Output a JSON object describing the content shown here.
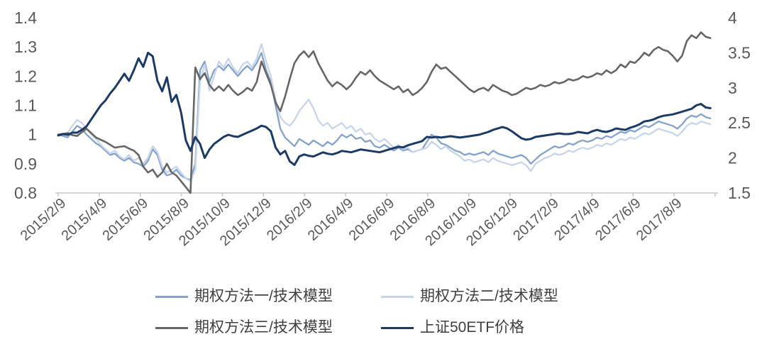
{
  "chart_data": {
    "type": "line",
    "title": "",
    "background": "#ffffff",
    "axis_line_color": "#c6c6c6",
    "tick_label_color": "#595959",
    "x_axis": {
      "tick_labels": [
        "2015/2/9",
        "2015/4/9",
        "2015/6/9",
        "2015/8/9",
        "2015/10/9",
        "2015/12/9",
        "2016/2/9",
        "2016/4/9",
        "2016/6/9",
        "2016/8/9",
        "2016/10/9",
        "2016/12/9",
        "2017/2/9",
        "2017/4/9",
        "2017/6/9",
        "2017/8/9"
      ],
      "tick_interval": "2 months",
      "label_rotation_deg": -42,
      "points_per_series": 139,
      "point_interval": "weekly"
    },
    "y_axis_left": {
      "min": 0.8,
      "max": 1.4,
      "tick_labels": [
        "1.4",
        "1.3",
        "1.2",
        "1.1",
        "1",
        "0.9",
        "0.8"
      ]
    },
    "y_axis_right": {
      "min": 1.5,
      "max": 4,
      "tick_labels": [
        "4",
        "3.5",
        "3",
        "2.5",
        "2",
        "1.5"
      ]
    },
    "legend_position": "bottom",
    "series": [
      {
        "name": "期权方法一/技术模型",
        "axis": "left",
        "color": "#84a2cb",
        "line_width": 2.3,
        "values": [
          1.0,
          0.995,
          0.99,
          1.01,
          1.03,
          1.02,
          1.0,
          0.985,
          0.97,
          0.96,
          0.945,
          0.93,
          0.935,
          0.92,
          0.91,
          0.92,
          0.905,
          0.9,
          0.89,
          0.91,
          0.95,
          0.93,
          0.88,
          0.86,
          0.865,
          0.88,
          0.86,
          0.85,
          0.845,
          0.9,
          1.22,
          1.25,
          1.18,
          1.22,
          1.235,
          1.22,
          1.24,
          1.22,
          1.2,
          1.22,
          1.235,
          1.22,
          1.245,
          1.28,
          1.22,
          1.18,
          1.1,
          1.02,
          0.99,
          0.975,
          0.96,
          0.985,
          0.975,
          0.965,
          0.98,
          0.97,
          0.96,
          0.975,
          0.965,
          0.98,
          1.0,
          0.99,
          1.0,
          0.985,
          0.99,
          0.975,
          0.98,
          0.96,
          0.955,
          0.965,
          0.955,
          0.945,
          0.955,
          0.945,
          0.95,
          0.94,
          0.945,
          0.95,
          0.975,
          1.0,
          0.99,
          0.97,
          0.965,
          0.955,
          0.945,
          0.94,
          0.93,
          0.935,
          0.93,
          0.935,
          0.94,
          0.93,
          0.945,
          0.935,
          0.93,
          0.925,
          0.92,
          0.925,
          0.93,
          0.92,
          0.9,
          0.915,
          0.93,
          0.94,
          0.95,
          0.96,
          0.955,
          0.96,
          0.97,
          0.965,
          0.975,
          0.98,
          0.975,
          0.98,
          0.99,
          0.985,
          0.995,
          0.99,
          1.0,
          1.01,
          1.005,
          1.015,
          1.01,
          1.02,
          1.03,
          1.025,
          1.035,
          1.045,
          1.04,
          1.035,
          1.03,
          1.02,
          1.035,
          1.055,
          1.065,
          1.06,
          1.07,
          1.06,
          1.055
        ]
      },
      {
        "name": "期权方法二/技术模型",
        "axis": "left",
        "color": "#c6d5eb",
        "line_width": 2.3,
        "values": [
          1.0,
          1.003,
          1.005,
          1.03,
          1.05,
          1.04,
          1.02,
          1.0,
          0.985,
          0.965,
          0.95,
          0.935,
          0.945,
          0.925,
          0.915,
          0.93,
          0.91,
          0.92,
          0.9,
          0.92,
          0.96,
          0.94,
          0.89,
          0.87,
          0.88,
          0.89,
          0.87,
          0.85,
          0.84,
          0.88,
          1.18,
          1.24,
          1.15,
          1.2,
          1.25,
          1.23,
          1.26,
          1.23,
          1.21,
          1.24,
          1.25,
          1.23,
          1.26,
          1.31,
          1.25,
          1.2,
          1.12,
          1.06,
          1.04,
          1.03,
          1.05,
          1.08,
          1.1,
          1.12,
          1.09,
          1.05,
          1.03,
          1.04,
          1.02,
          1.03,
          1.04,
          1.02,
          1.03,
          1.01,
          1.02,
          1.0,
          1.005,
          0.985,
          0.975,
          0.985,
          0.97,
          0.955,
          0.965,
          0.95,
          0.955,
          0.94,
          0.945,
          0.95,
          0.955,
          0.975,
          0.965,
          0.95,
          0.96,
          0.945,
          0.935,
          0.925,
          0.91,
          0.915,
          0.905,
          0.91,
          0.915,
          0.905,
          0.92,
          0.91,
          0.905,
          0.9,
          0.895,
          0.9,
          0.905,
          0.895,
          0.875,
          0.9,
          0.91,
          0.92,
          0.925,
          0.935,
          0.93,
          0.935,
          0.945,
          0.94,
          0.95,
          0.955,
          0.95,
          0.955,
          0.965,
          0.96,
          0.97,
          0.965,
          0.975,
          0.985,
          0.98,
          0.99,
          0.985,
          0.995,
          1.005,
          1.0,
          1.01,
          1.02,
          1.015,
          1.01,
          1.005,
          0.995,
          1.01,
          1.03,
          1.04,
          1.035,
          1.045,
          1.04,
          1.035
        ]
      },
      {
        "name": "期权方法三/技术模型",
        "axis": "left",
        "color": "#666666",
        "line_width": 2.6,
        "values": [
          1.0,
          1.002,
          1.005,
          0.998,
          0.995,
          1.008,
          1.02,
          1.005,
          0.99,
          0.982,
          0.975,
          0.965,
          0.955,
          0.958,
          0.96,
          0.952,
          0.945,
          0.93,
          0.89,
          0.87,
          0.88,
          0.855,
          0.87,
          0.9,
          0.87,
          0.86,
          0.84,
          0.82,
          0.8,
          1.23,
          1.19,
          1.21,
          1.17,
          1.15,
          1.165,
          1.15,
          1.17,
          1.15,
          1.135,
          1.145,
          1.16,
          1.15,
          1.18,
          1.25,
          1.21,
          1.17,
          1.11,
          1.08,
          1.13,
          1.19,
          1.245,
          1.27,
          1.285,
          1.265,
          1.285,
          1.245,
          1.215,
          1.185,
          1.165,
          1.18,
          1.17,
          1.155,
          1.17,
          1.195,
          1.215,
          1.205,
          1.22,
          1.2,
          1.185,
          1.175,
          1.165,
          1.155,
          1.165,
          1.145,
          1.155,
          1.135,
          1.145,
          1.16,
          1.18,
          1.215,
          1.24,
          1.225,
          1.23,
          1.215,
          1.2,
          1.185,
          1.17,
          1.155,
          1.145,
          1.155,
          1.16,
          1.15,
          1.17,
          1.16,
          1.15,
          1.145,
          1.135,
          1.14,
          1.15,
          1.16,
          1.155,
          1.16,
          1.17,
          1.165,
          1.17,
          1.18,
          1.175,
          1.18,
          1.19,
          1.185,
          1.19,
          1.2,
          1.195,
          1.2,
          1.21,
          1.205,
          1.22,
          1.21,
          1.22,
          1.24,
          1.23,
          1.25,
          1.245,
          1.26,
          1.28,
          1.27,
          1.29,
          1.3,
          1.29,
          1.285,
          1.27,
          1.25,
          1.27,
          1.32,
          1.34,
          1.33,
          1.35,
          1.335,
          1.33
        ]
      },
      {
        "name": "上证50ETF价格",
        "axis": "right",
        "color": "#1b3a66",
        "line_width": 3,
        "values": [
          2.32,
          2.34,
          2.33,
          2.36,
          2.36,
          2.4,
          2.45,
          2.55,
          2.65,
          2.75,
          2.82,
          2.92,
          3.0,
          3.1,
          3.2,
          3.1,
          3.25,
          3.42,
          3.3,
          3.5,
          3.45,
          3.1,
          2.95,
          3.15,
          2.8,
          2.9,
          2.65,
          2.25,
          2.1,
          2.3,
          2.2,
          2.0,
          2.12,
          2.2,
          2.25,
          2.3,
          2.33,
          2.31,
          2.3,
          2.33,
          2.36,
          2.39,
          2.42,
          2.46,
          2.44,
          2.38,
          2.15,
          2.05,
          2.1,
          1.95,
          1.9,
          2.02,
          2.05,
          2.03,
          2.02,
          2.05,
          2.08,
          2.06,
          2.05,
          2.07,
          2.1,
          2.09,
          2.08,
          2.1,
          2.12,
          2.11,
          2.1,
          2.09,
          2.08,
          2.1,
          2.12,
          2.14,
          2.16,
          2.15,
          2.18,
          2.2,
          2.22,
          2.24,
          2.3,
          2.29,
          2.3,
          2.29,
          2.3,
          2.31,
          2.3,
          2.29,
          2.3,
          2.31,
          2.32,
          2.33,
          2.35,
          2.37,
          2.4,
          2.42,
          2.44,
          2.42,
          2.38,
          2.33,
          2.28,
          2.26,
          2.27,
          2.3,
          2.31,
          2.32,
          2.33,
          2.34,
          2.35,
          2.34,
          2.34,
          2.35,
          2.37,
          2.36,
          2.35,
          2.38,
          2.4,
          2.38,
          2.37,
          2.39,
          2.42,
          2.41,
          2.4,
          2.43,
          2.45,
          2.48,
          2.52,
          2.53,
          2.55,
          2.58,
          2.6,
          2.61,
          2.62,
          2.64,
          2.66,
          2.68,
          2.7,
          2.75,
          2.77,
          2.72,
          2.71
        ]
      }
    ]
  }
}
